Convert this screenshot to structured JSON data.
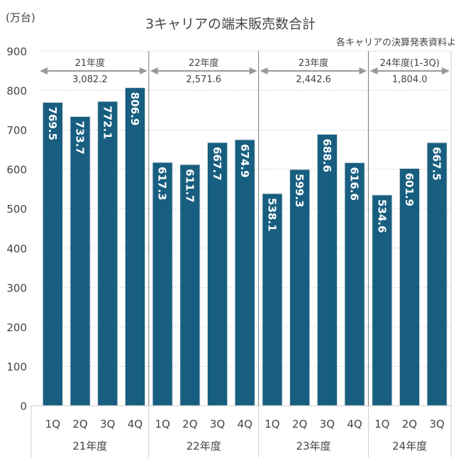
{
  "chart_data": {
    "type": "bar",
    "title": "3キャリアの端末販売数合計",
    "ylabel": "(万台)",
    "source_note": "各キャリアの決算発表資料よ",
    "ylim": [
      0,
      900
    ],
    "yticks": [
      0,
      100,
      200,
      300,
      400,
      500,
      600,
      700,
      800,
      900
    ],
    "grid": true,
    "categories": [
      "1Q",
      "2Q",
      "3Q",
      "4Q",
      "1Q",
      "2Q",
      "3Q",
      "4Q",
      "1Q",
      "2Q",
      "3Q",
      "4Q",
      "1Q",
      "2Q",
      "3Q"
    ],
    "values": [
      769.5,
      733.7,
      772.1,
      806.9,
      617.3,
      611.7,
      667.7,
      674.9,
      538.1,
      599.3,
      688.6,
      616.6,
      534.6,
      601.9,
      667.5
    ],
    "value_labels": [
      "769.5",
      "733.7",
      "772.1",
      "806.9",
      "617.3",
      "611.7",
      "667.7",
      "674.9",
      "538.1",
      "599.3",
      "688.6",
      "616.6",
      "534.6",
      "601.9",
      "667.5"
    ],
    "groups": [
      {
        "label": "21年度",
        "span_label": "21年度",
        "total": "3,082.2",
        "count": 4
      },
      {
        "label": "22年度",
        "span_label": "22年度",
        "total": "2,571.6",
        "count": 4
      },
      {
        "label": "23年度",
        "span_label": "23年度",
        "total": "2,442.6",
        "count": 4
      },
      {
        "label": "24年度",
        "span_label": "24年度(1-3Q)",
        "total": "1,804.0",
        "count": 3
      }
    ],
    "bar_color": "#185E80",
    "label_color": "#ffffff"
  }
}
